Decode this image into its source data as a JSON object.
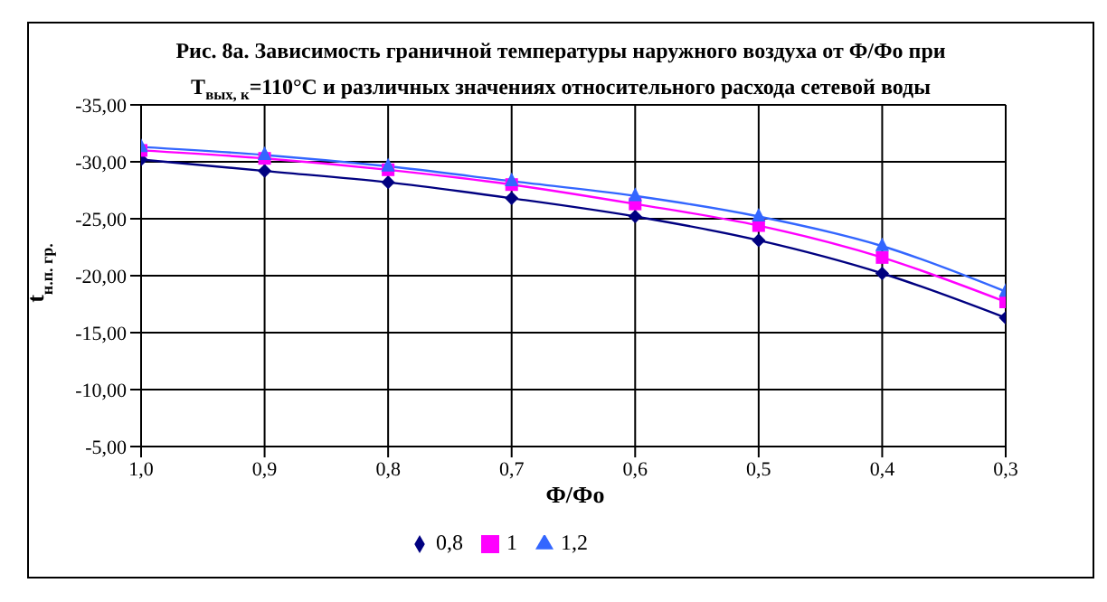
{
  "chart_data": {
    "type": "line",
    "title": "Рис. 8а. Зависимость граничной температуры наружного воздуха от Ф/Фо при T$_{вых, к}$=110°C и различных значениях относительного расхода сетевой воды",
    "xlabel": "Ф/Фо",
    "ylabel": "t$_{н.п. гр.}$",
    "x": [
      1.0,
      0.9,
      0.8,
      0.7,
      0.6,
      0.5,
      0.4,
      0.3
    ],
    "xlim": [
      1.0,
      0.3
    ],
    "xticks": [
      {
        "value": 1.0,
        "label": "1,0"
      },
      {
        "value": 0.9,
        "label": "0,9"
      },
      {
        "value": 0.8,
        "label": "0,8"
      },
      {
        "value": 0.7,
        "label": "0,7"
      },
      {
        "value": 0.6,
        "label": "0,6"
      },
      {
        "value": 0.5,
        "label": "0,5"
      },
      {
        "value": 0.4,
        "label": "0,4"
      },
      {
        "value": 0.3,
        "label": "0,3"
      }
    ],
    "ylim": [
      -5,
      -35
    ],
    "yticks": [
      {
        "value": -35,
        "label": "-35,00"
      },
      {
        "value": -30,
        "label": "-30,00"
      },
      {
        "value": -25,
        "label": "-25,00"
      },
      {
        "value": -20,
        "label": "-20,00"
      },
      {
        "value": -15,
        "label": "-15,00"
      },
      {
        "value": -10,
        "label": "-10,00"
      },
      {
        "value": -5,
        "label": "-5,00"
      }
    ],
    "grid": true,
    "legend": "bottom",
    "series": [
      {
        "name": "0,8",
        "color": "#000080",
        "marker": "diamond",
        "values": [
          -30.2,
          -29.2,
          -28.2,
          -26.8,
          -25.2,
          -23.1,
          -20.2,
          -16.3
        ]
      },
      {
        "name": "1",
        "color": "#ff00ff",
        "marker": "square",
        "values": [
          -31.0,
          -30.3,
          -29.3,
          -28.0,
          -26.3,
          -24.4,
          -21.6,
          -17.7
        ]
      },
      {
        "name": "1,2",
        "color": "#3366ff",
        "marker": "triangle",
        "values": [
          -31.3,
          -30.6,
          -29.6,
          -28.3,
          -27.0,
          -25.2,
          -22.6,
          -18.6
        ]
      }
    ]
  }
}
